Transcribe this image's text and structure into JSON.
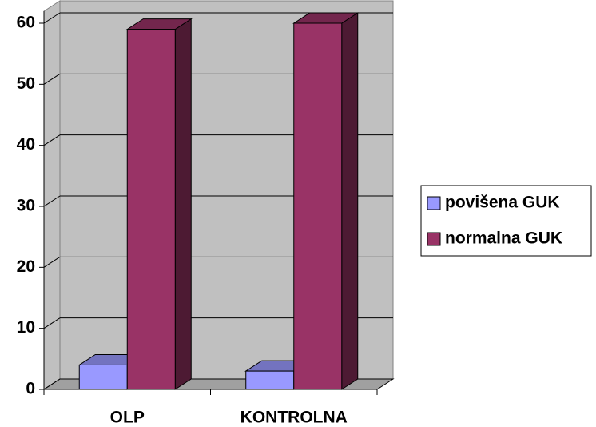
{
  "chart_data": {
    "type": "bar3d",
    "categories": [
      "OLP",
      "KONTROLNA"
    ],
    "series": [
      {
        "name": "povišena GUK",
        "color": "#9999ff",
        "values": [
          4,
          3
        ]
      },
      {
        "name": "normalna GUK",
        "color": "#993366",
        "values": [
          59,
          60
        ]
      }
    ],
    "ylim": [
      0,
      60
    ],
    "yticks": [
      0,
      10,
      20,
      30,
      40,
      50,
      60
    ],
    "grid": true,
    "legend": "right"
  }
}
